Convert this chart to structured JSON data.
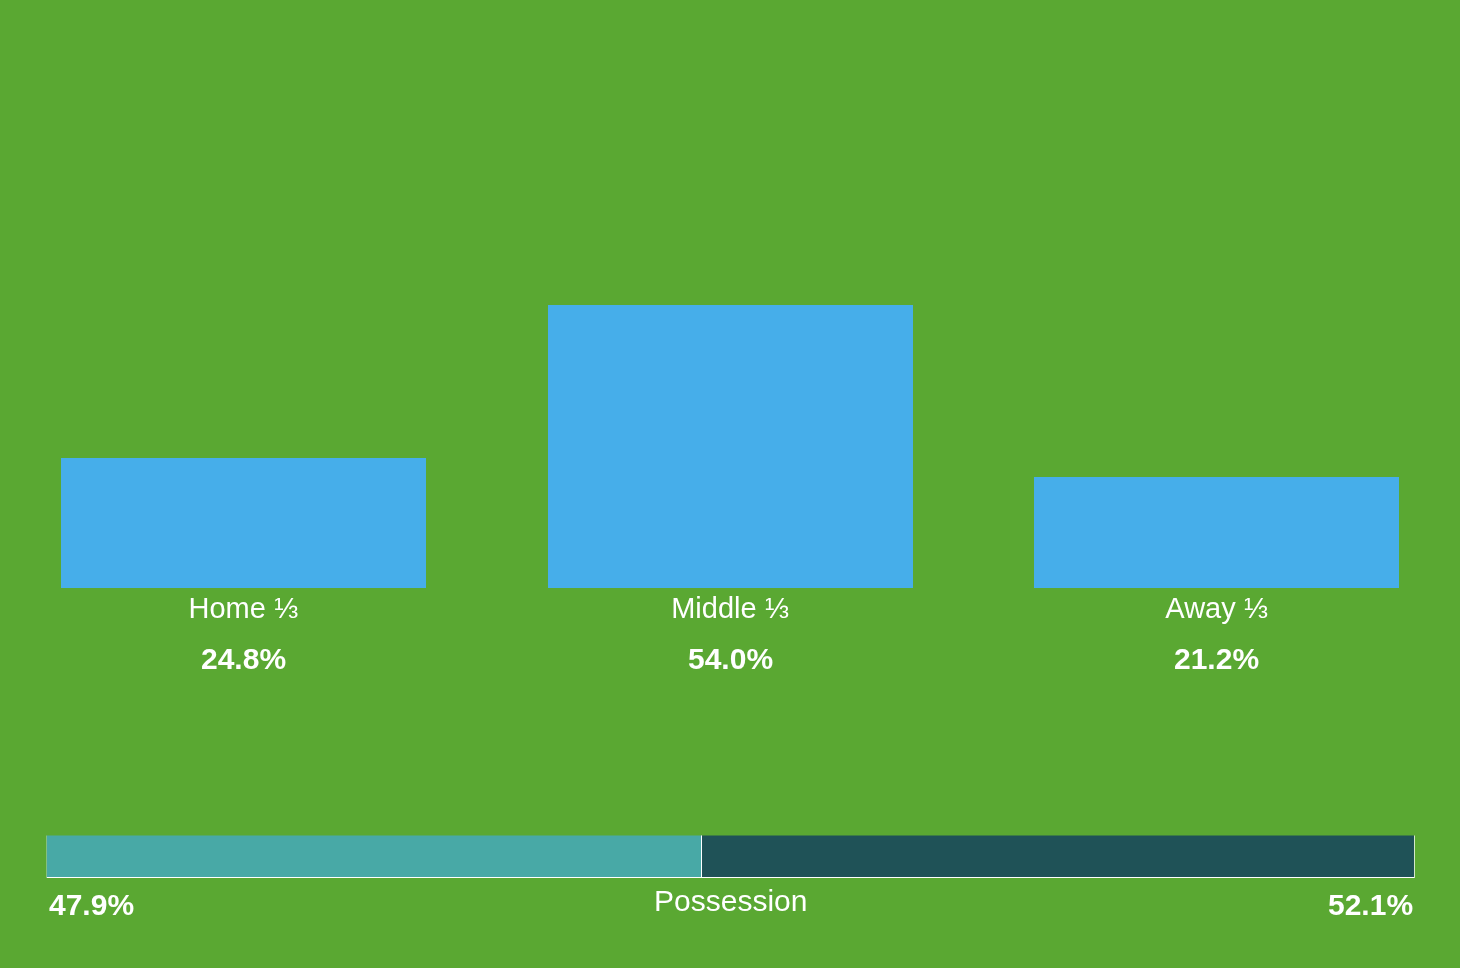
{
  "chart_data": [
    {
      "type": "bar",
      "categories": [
        "Home ⅓",
        "Middle ⅓",
        "Away ⅓"
      ],
      "values": [
        24.8,
        54.0,
        21.2
      ],
      "color": "#46aeea",
      "value_labels": [
        "24.8%",
        "54.0%",
        "21.2%"
      ]
    },
    {
      "type": "bar",
      "orientation": "horizontal",
      "stacked": true,
      "categories": [
        null
      ],
      "xlabel": "Possession",
      "series": [
        {
          "color": "#48a9a6",
          "values": [
            47.9
          ],
          "value_labels": [
            "47.9%"
          ]
        },
        {
          "color": "#1f5257",
          "values": [
            52.1
          ],
          "value_labels": [
            "52.1%"
          ]
        }
      ]
    }
  ]
}
